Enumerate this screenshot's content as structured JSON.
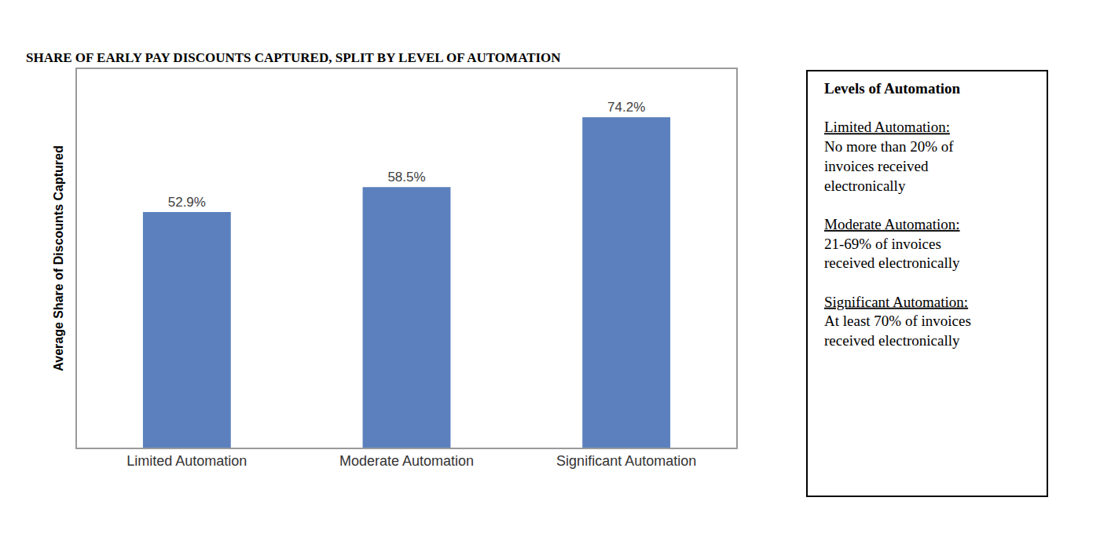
{
  "chart_data": {
    "type": "bar",
    "title": "SHARE OF EARLY PAY DISCOUNTS CAPTURED, SPLIT BY LEVEL OF AUTOMATION",
    "y_label": "Average Share of Discounts Captured",
    "categories": [
      "Limited Automation",
      "Moderate Automation",
      "Significant Automation"
    ],
    "values": [
      52.9,
      58.5,
      74.2
    ],
    "value_labels": [
      "52.9%",
      "58.5%",
      "74.2%"
    ],
    "color": "#5b80bd",
    "ylim": [
      0,
      85
    ],
    "grid": false,
    "data_labels": true,
    "tick_labels": "x",
    "annotations": [
      {
        "title": "Levels of Automation",
        "items": [
          {
            "term": "Limited Automation:",
            "lines": [
              "No more than 20% of",
              "invoices received",
              "electronically"
            ]
          },
          {
            "term": "Moderate Automation:",
            "lines": [
              "21-69% of invoices",
              "received electronically"
            ]
          },
          {
            "term": "Significant Automation:",
            "lines": [
              "At least 70% of invoices",
              "received electronically"
            ]
          }
        ]
      }
    ]
  }
}
